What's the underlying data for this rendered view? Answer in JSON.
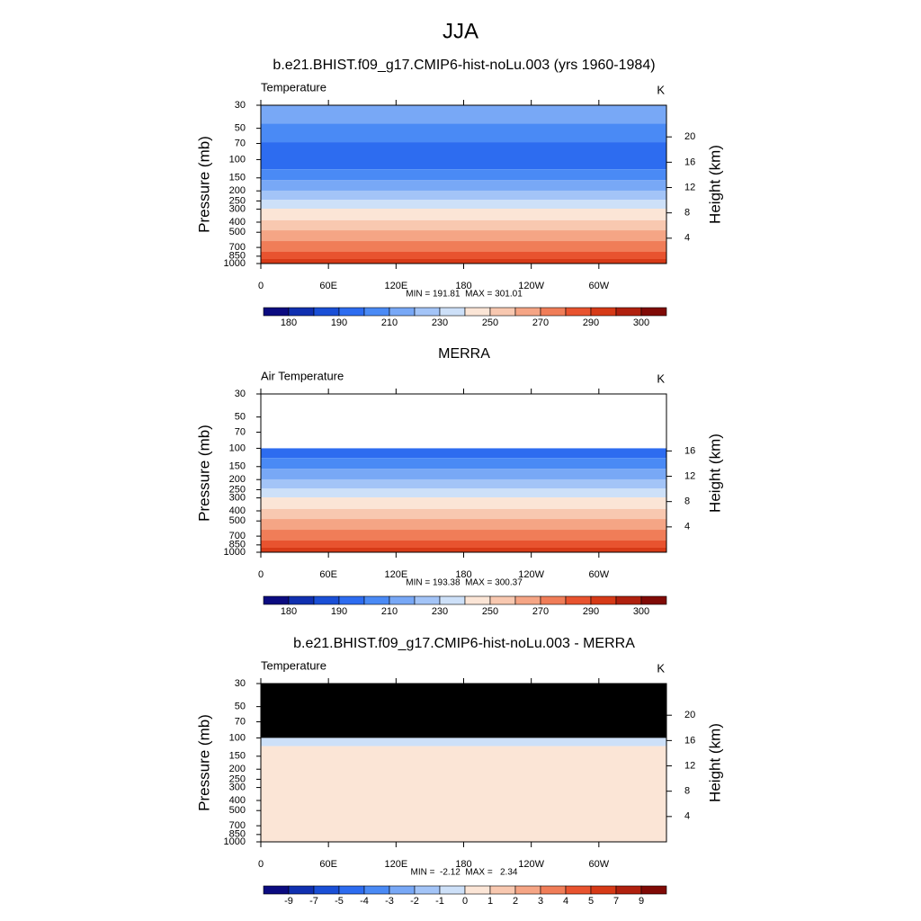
{
  "title": "JJA",
  "chart_data": [
    {
      "type": "contour",
      "title": "b.e21.BHIST.f09_g17.CMIP6-hist-noLu.003 (yrs 1960-1984)",
      "left_string": "Temperature",
      "right_string": "K",
      "ylabel": "Pressure (mb)",
      "y2label": "Height (km)",
      "log_y": true,
      "ylim": [
        1000,
        30
      ],
      "yticks": [
        30,
        50,
        70,
        100,
        150,
        200,
        250,
        300,
        400,
        500,
        700,
        850,
        1000
      ],
      "y2lim": [
        0,
        25
      ],
      "y2ticks": [
        4,
        8,
        12,
        16,
        20
      ],
      "xlim": [
        0,
        360
      ],
      "xticks": [
        0,
        {
          "value": 60,
          "label": "60E"
        },
        {
          "value": 120,
          "label": "120E"
        },
        180,
        {
          "value": 240,
          "label": "120W"
        },
        {
          "value": 300,
          "label": "60W"
        }
      ],
      "stats": "MIN = 191.81  MAX = 301.01",
      "band_edges": [
        30,
        45,
        68,
        124,
        157,
        199,
        243,
        297,
        384,
        479,
        608,
        772,
        905,
        1000
      ],
      "band_colors": [
        "#78a8f6",
        "#4a8af5",
        "#2d6cf0",
        "#4a8af5",
        "#78a8f6",
        "#a3c4f7",
        "#cde0f8",
        "#fbe5d6",
        "#f8c8b0",
        "#f5a585",
        "#f07d58",
        "#e8532f",
        "#d63a17"
      ],
      "colorbar": {
        "colors": [
          "#0b0b80",
          "#1030b0",
          "#1a4fd6",
          "#2d6cf0",
          "#4a8af5",
          "#78a8f6",
          "#a3c4f7",
          "#cde0f8",
          "#fbe5d6",
          "#f8c8b0",
          "#f5a585",
          "#f07d58",
          "#e8532f",
          "#d63a17",
          "#b0200e",
          "#800a06"
        ],
        "labels": [
          180,
          190,
          210,
          230,
          250,
          270,
          290,
          300
        ]
      }
    },
    {
      "type": "contour",
      "title": "MERRA",
      "left_string": "Air Temperature",
      "right_string": "K",
      "ylabel": "Pressure (mb)",
      "y2label": "Height (km)",
      "log_y": true,
      "ylim": [
        1000,
        30
      ],
      "yticks": [
        30,
        50,
        70,
        100,
        150,
        200,
        250,
        300,
        400,
        500,
        700,
        850,
        1000
      ],
      "y2lim": [
        0,
        25
      ],
      "y2ticks": [
        4,
        8,
        12,
        16
      ],
      "xlim": [
        0,
        360
      ],
      "xticks": [
        0,
        {
          "value": 60,
          "label": "60E"
        },
        {
          "value": 120,
          "label": "120E"
        },
        180,
        {
          "value": 240,
          "label": "120W"
        },
        {
          "value": 300,
          "label": "60W"
        }
      ],
      "stats": "MIN = 193.38  MAX = 300.37",
      "band_edges": [
        30,
        100,
        124,
        157,
        199,
        243,
        297,
        384,
        479,
        608,
        772,
        905,
        1000
      ],
      "band_colors": [
        "#ffffff",
        "#2d6cf0",
        "#4a8af5",
        "#78a8f6",
        "#a3c4f7",
        "#cde0f8",
        "#fbe5d6",
        "#f8c8b0",
        "#f5a585",
        "#f07d58",
        "#e8532f",
        "#d63a17"
      ],
      "colorbar": {
        "colors": [
          "#0b0b80",
          "#1030b0",
          "#1a4fd6",
          "#2d6cf0",
          "#4a8af5",
          "#78a8f6",
          "#a3c4f7",
          "#cde0f8",
          "#fbe5d6",
          "#f8c8b0",
          "#f5a585",
          "#f07d58",
          "#e8532f",
          "#d63a17",
          "#b0200e",
          "#800a06"
        ],
        "labels": [
          180,
          190,
          210,
          230,
          250,
          270,
          290,
          300
        ]
      }
    },
    {
      "type": "contour",
      "title": "b.e21.BHIST.f09_g17.CMIP6-hist-noLu.003 - MERRA",
      "left_string": "Temperature",
      "right_string": "K",
      "ylabel": "Pressure (mb)",
      "y2label": "Height (km)",
      "log_y": true,
      "ylim": [
        1000,
        30
      ],
      "yticks": [
        30,
        50,
        70,
        100,
        150,
        200,
        250,
        300,
        400,
        500,
        700,
        850,
        1000
      ],
      "y2lim": [
        0,
        25
      ],
      "y2ticks": [
        4,
        8,
        12,
        16,
        20
      ],
      "xlim": [
        0,
        360
      ],
      "xticks": [
        0,
        {
          "value": 60,
          "label": "60E"
        },
        {
          "value": 120,
          "label": "120E"
        },
        180,
        {
          "value": 240,
          "label": "120W"
        },
        {
          "value": 300,
          "label": "60W"
        }
      ],
      "stats": "MIN =  -2.12  MAX =   2.34",
      "band_edges": [
        30,
        100,
        120,
        1000
      ],
      "band_colors": [
        "#000000",
        "#cde0f8",
        "#fbe5d6"
      ],
      "colorbar": {
        "colors": [
          "#0b0b80",
          "#1030b0",
          "#1a4fd6",
          "#2d6cf0",
          "#4a8af5",
          "#78a8f6",
          "#a3c4f7",
          "#cde0f8",
          "#fbe5d6",
          "#f8c8b0",
          "#f5a585",
          "#f07d58",
          "#e8532f",
          "#d63a17",
          "#b0200e",
          "#800a06"
        ],
        "labels": [
          -9,
          -7,
          -5,
          -4,
          -3,
          -2,
          -1,
          0,
          1,
          2,
          3,
          4,
          5,
          7,
          9
        ]
      }
    }
  ]
}
